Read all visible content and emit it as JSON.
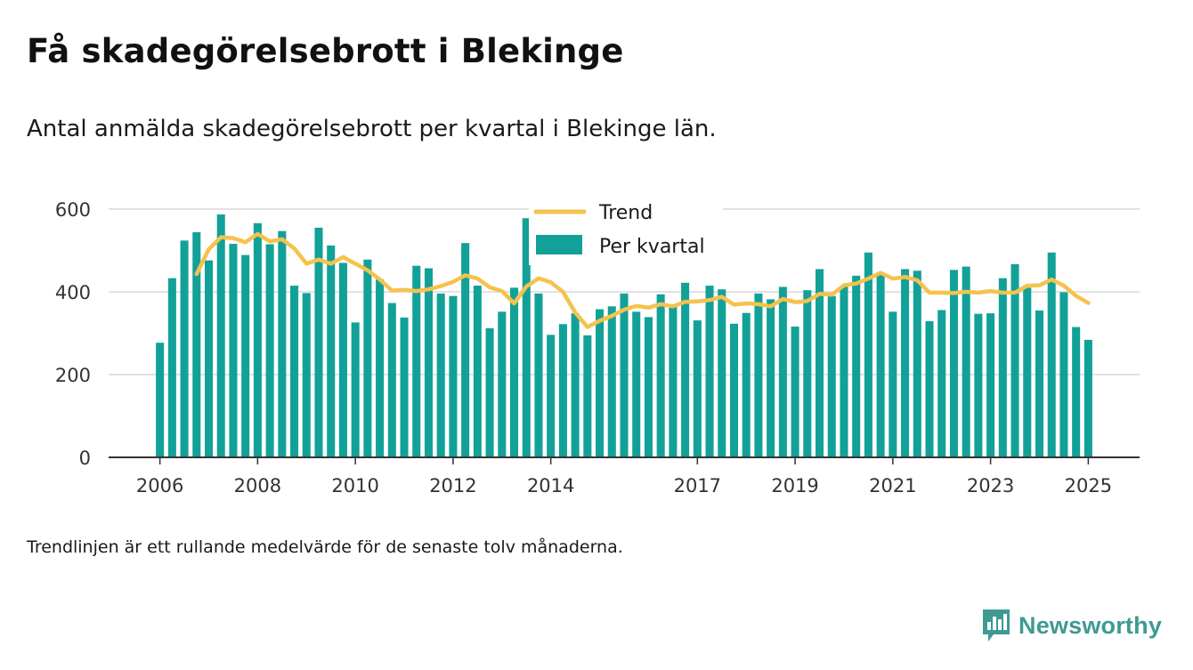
{
  "title": "Få skadegörelsebrott i Blekinge",
  "subtitle": "Antal anmälda skadegörelsebrott per kvartal i Blekinge län.",
  "footnote": "Trendlinjen är ett rullande medelvärde för de senaste tolv månaderna.",
  "brand": {
    "name": "Newsworthy",
    "icon": "newsworthy-logo-icon"
  },
  "colors": {
    "bars": "#12a198",
    "trend": "#f5c24d",
    "grid": "#d9d9d9",
    "axis": "#333333",
    "brand": "#3f9a93"
  },
  "chart_data": {
    "type": "bar",
    "x_tick_labels": [
      "2006",
      "2008",
      "2010",
      "2012",
      "2014",
      "2017",
      "2019",
      "2021",
      "2023",
      "2025"
    ],
    "x_tick_years": [
      2006,
      2008,
      2010,
      2012,
      2014,
      2017,
      2019,
      2021,
      2023,
      2025
    ],
    "x_range": [
      2004.95,
      2026.05
    ],
    "y_ticks": [
      0,
      200,
      400,
      600
    ],
    "ylim": [
      0,
      600
    ],
    "grid": true,
    "legend": "top-center",
    "series": [
      {
        "name": "Per kvartal",
        "kind": "bar",
        "x": [
          2006.0,
          2006.25,
          2006.5,
          2006.75,
          2007.0,
          2007.25,
          2007.5,
          2007.75,
          2008.0,
          2008.25,
          2008.5,
          2008.75,
          2009.0,
          2009.25,
          2009.5,
          2009.75,
          2010.0,
          2010.25,
          2010.5,
          2010.75,
          2011.0,
          2011.25,
          2011.5,
          2011.75,
          2012.0,
          2012.25,
          2012.5,
          2012.75,
          2013.0,
          2013.25,
          2013.5,
          2013.75,
          2014.0,
          2014.25,
          2014.5,
          2014.75,
          2015.0,
          2015.25,
          2015.5,
          2015.75,
          2016.0,
          2016.25,
          2016.5,
          2016.75,
          2017.0,
          2017.25,
          2017.5,
          2017.75,
          2018.0,
          2018.25,
          2018.5,
          2018.75,
          2019.0,
          2019.25,
          2019.5,
          2019.75,
          2020.0,
          2020.25,
          2020.5,
          2020.75,
          2021.0,
          2021.25,
          2021.5,
          2021.75,
          2022.0,
          2022.25,
          2022.5,
          2022.75,
          2023.0,
          2023.25,
          2023.5,
          2023.75,
          2024.0,
          2024.25,
          2024.5,
          2024.75,
          2025.0
        ],
        "values": [
          277,
          433,
          524,
          544,
          476,
          587,
          516,
          489,
          566,
          515,
          547,
          415,
          397,
          555,
          512,
          470,
          326,
          478,
          430,
          373,
          338,
          463,
          457,
          396,
          390,
          518,
          415,
          312,
          352,
          410,
          578,
          396,
          296,
          322,
          348,
          295,
          358,
          365,
          396,
          352,
          339,
          394,
          364,
          422,
          331,
          415,
          406,
          323,
          349,
          396,
          382,
          412,
          316,
          404,
          455,
          390,
          414,
          439,
          495,
          442,
          352,
          455,
          451,
          329,
          356,
          453,
          461,
          347,
          348,
          433,
          467,
          410,
          355,
          495,
          399,
          315,
          284
        ]
      },
      {
        "name": "Trend",
        "kind": "line",
        "x": [
          2006.75,
          2007.0,
          2007.25,
          2007.5,
          2007.75,
          2008.0,
          2008.25,
          2008.5,
          2008.75,
          2009.0,
          2009.25,
          2009.5,
          2009.75,
          2010.0,
          2010.25,
          2010.5,
          2010.75,
          2011.0,
          2011.25,
          2011.5,
          2011.75,
          2012.0,
          2012.25,
          2012.5,
          2012.75,
          2013.0,
          2013.25,
          2013.5,
          2013.75,
          2014.0,
          2014.25,
          2014.5,
          2014.75,
          2015.0,
          2015.25,
          2015.5,
          2015.75,
          2016.0,
          2016.25,
          2016.5,
          2016.75,
          2017.0,
          2017.25,
          2017.5,
          2017.75,
          2018.0,
          2018.25,
          2018.5,
          2018.75,
          2019.0,
          2019.25,
          2019.5,
          2019.75,
          2020.0,
          2020.25,
          2020.5,
          2020.75,
          2021.0,
          2021.25,
          2021.5,
          2021.75,
          2022.0,
          2022.25,
          2022.5,
          2022.75,
          2023.0,
          2023.25,
          2023.5,
          2023.75,
          2024.0,
          2024.25,
          2024.5,
          2024.75,
          2025.0
        ],
        "values": [
          443,
          503,
          532,
          530,
          520,
          540,
          522,
          527,
          505,
          468,
          478,
          468,
          484,
          468,
          452,
          430,
          403,
          405,
          402,
          406,
          414,
          424,
          440,
          432,
          411,
          402,
          372,
          413,
          433,
          423,
          400,
          350,
          315,
          330,
          342,
          357,
          366,
          362,
          370,
          365,
          376,
          377,
          380,
          388,
          369,
          372,
          370,
          365,
          383,
          375,
          378,
          395,
          393,
          416,
          420,
          432,
          446,
          432,
          436,
          428,
          398,
          398,
          397,
          400,
          398,
          402,
          398,
          398,
          415,
          416,
          430,
          415,
          390,
          373
        ]
      }
    ]
  }
}
